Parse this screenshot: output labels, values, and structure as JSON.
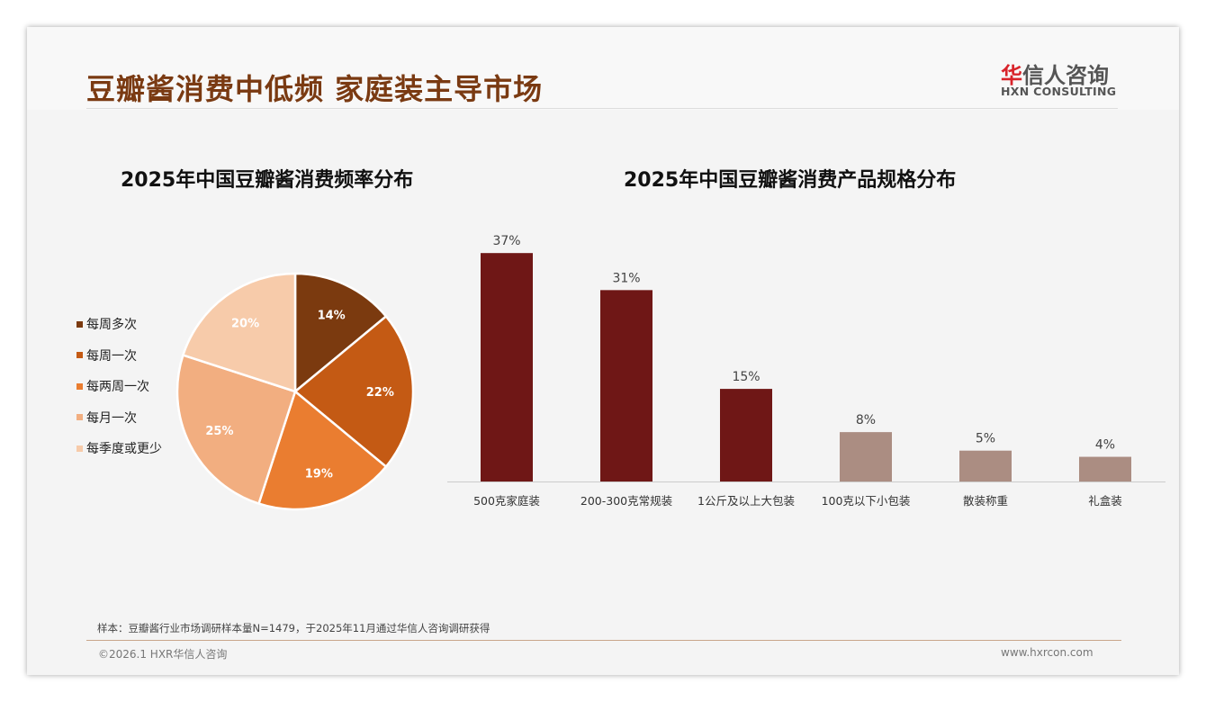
{
  "header": {
    "title": "豆瓣酱消费中低频 家庭装主导市场",
    "logo_cn_red": "华",
    "logo_cn": "信人咨询",
    "logo_en": "HXN CONSULTING"
  },
  "footer": {
    "note": "样本：豆瓣酱行业市场调研样本量N=1479，于2025年11月通过华信人咨询调研获得",
    "copyright": "©2026.1 HXR华信人咨询",
    "website": "www.hxrcon.com"
  },
  "chart_data": [
    {
      "type": "pie",
      "title": "2025年中国豆瓣酱消费频率分布",
      "labels": [
        "每周多次",
        "每周一次",
        "每两周一次",
        "每月一次",
        "每季度或更少"
      ],
      "values": [
        14,
        22,
        19,
        25,
        20
      ],
      "value_labels": [
        "14%",
        "22%",
        "19%",
        "25%",
        "20%"
      ],
      "colors": [
        "#7b3a0f",
        "#c45a14",
        "#ea7d30",
        "#f2ae80",
        "#f7cbaa"
      ],
      "legend": "left"
    },
    {
      "type": "bar",
      "title": "2025年中国豆瓣酱消费产品规格分布",
      "categories": [
        "500克家庭装",
        "200-300克常规装",
        "1公斤及以上大包装",
        "100克以下小包装",
        "散装称重",
        "礼盒装"
      ],
      "values": [
        37,
        31,
        15,
        8,
        5,
        4
      ],
      "value_labels": [
        "37%",
        "31%",
        "15%",
        "8%",
        "5%",
        "4%"
      ],
      "colors": [
        "#6f1716",
        "#6f1716",
        "#6f1716",
        "#ab8d82",
        "#ab8d82",
        "#ab8d82"
      ],
      "unit": "%"
    }
  ]
}
